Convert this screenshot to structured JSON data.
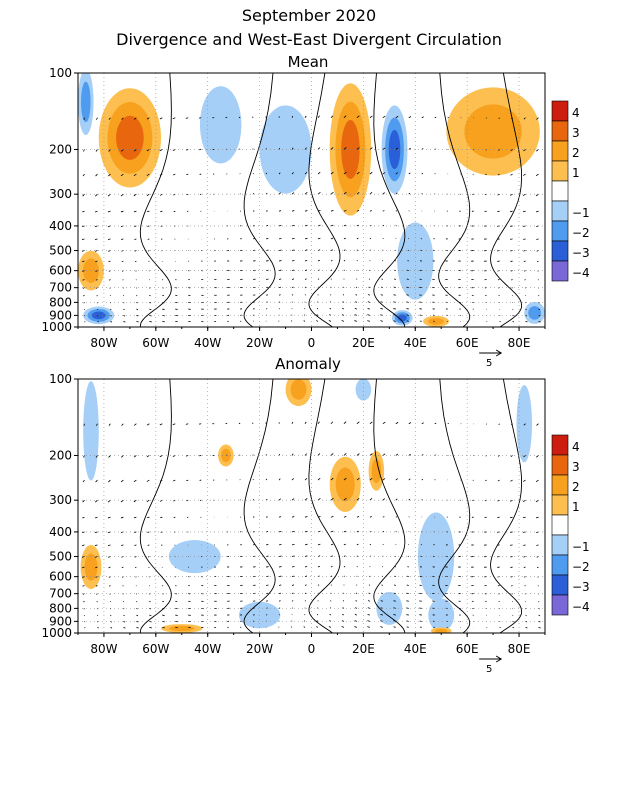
{
  "header": {
    "title": "September 2020",
    "subtitle": "Divergence and West-East Divergent Circulation"
  },
  "colors": {
    "-4": "#7b68d8",
    "-3": "#2a5fd8",
    "-2": "#4f9bef",
    "-1": "#a5cff7",
    "0": "#ffffff",
    "1": "#fdc050",
    "2": "#f8a11e",
    "3": "#e8660e",
    "4": "#cc1d0f"
  },
  "colorbar": {
    "labels": [
      "4",
      "3",
      "2",
      "1",
      "−1",
      "−2",
      "−3",
      "−4"
    ],
    "levels": [
      4,
      3,
      2,
      1,
      0,
      -1,
      -2,
      -3,
      -4
    ]
  },
  "vector_reference": "5",
  "chart_data": [
    {
      "type": "heatmap",
      "title": "Mean",
      "x_ticks": [
        "80W",
        "60W",
        "40W",
        "20W",
        "0",
        "20E",
        "40E",
        "60E",
        "80E"
      ],
      "x_tick_values": [
        -80,
        -60,
        -40,
        -20,
        0,
        20,
        40,
        60,
        80
      ],
      "y_ticks": [
        "100",
        "200",
        "300",
        "400",
        "500",
        "600",
        "700",
        "800",
        "900",
        "1000"
      ],
      "y_tick_values": [
        100,
        200,
        300,
        400,
        500,
        600,
        700,
        800,
        900,
        1000
      ],
      "xlim": [
        -90,
        90
      ],
      "ylim": [
        1000,
        100
      ],
      "y_scale": "log",
      "grid": true,
      "blobs": [
        {
          "x": -70,
          "p": 180,
          "rx": 12,
          "rp": 0.45,
          "level": 3
        },
        {
          "x": -87,
          "p": 130,
          "rx": 3,
          "rp": 0.3,
          "level": -2
        },
        {
          "x": -85,
          "p": 600,
          "rx": 5,
          "rp": 0.18,
          "level": 2
        },
        {
          "x": -82,
          "p": 900,
          "rx": 6,
          "rp": 0.08,
          "level": -3
        },
        {
          "x": -35,
          "p": 160,
          "rx": 8,
          "rp": 0.35,
          "level": -1
        },
        {
          "x": -10,
          "p": 200,
          "rx": 10,
          "rp": 0.4,
          "level": -1
        },
        {
          "x": 15,
          "p": 200,
          "rx": 8,
          "rp": 0.6,
          "level": 3
        },
        {
          "x": 32,
          "p": 200,
          "rx": 5,
          "rp": 0.4,
          "level": -3
        },
        {
          "x": 40,
          "p": 550,
          "rx": 7,
          "rp": 0.35,
          "level": -1
        },
        {
          "x": 35,
          "p": 920,
          "rx": 4,
          "rp": 0.07,
          "level": -3
        },
        {
          "x": 48,
          "p": 950,
          "rx": 5,
          "rp": 0.05,
          "level": 2
        },
        {
          "x": 70,
          "p": 170,
          "rx": 18,
          "rp": 0.4,
          "level": 2
        },
        {
          "x": 86,
          "p": 880,
          "rx": 4,
          "rp": 0.1,
          "level": -2
        }
      ]
    },
    {
      "type": "heatmap",
      "title": "Anomaly",
      "x_ticks": [
        "80W",
        "60W",
        "40W",
        "20W",
        "0",
        "20E",
        "40E",
        "60E",
        "80E"
      ],
      "x_tick_values": [
        -80,
        -60,
        -40,
        -20,
        0,
        20,
        40,
        60,
        80
      ],
      "y_ticks": [
        "100",
        "200",
        "300",
        "400",
        "500",
        "600",
        "700",
        "800",
        "900",
        "1000"
      ],
      "y_tick_values": [
        100,
        200,
        300,
        400,
        500,
        600,
        700,
        800,
        900,
        1000
      ],
      "xlim": [
        -90,
        90
      ],
      "ylim": [
        1000,
        100
      ],
      "y_scale": "log",
      "grid": true,
      "blobs": [
        {
          "x": -85,
          "p": 550,
          "rx": 4,
          "rp": 0.2,
          "level": 2
        },
        {
          "x": -85,
          "p": 160,
          "rx": 3,
          "rp": 0.45,
          "level": -1
        },
        {
          "x": -33,
          "p": 200,
          "rx": 3,
          "rp": 0.1,
          "level": 2
        },
        {
          "x": -5,
          "p": 110,
          "rx": 5,
          "rp": 0.15,
          "level": 2
        },
        {
          "x": 13,
          "p": 260,
          "rx": 6,
          "rp": 0.25,
          "level": 2
        },
        {
          "x": 25,
          "p": 230,
          "rx": 3,
          "rp": 0.18,
          "level": 2
        },
        {
          "x": 20,
          "p": 110,
          "rx": 3,
          "rp": 0.1,
          "level": -1
        },
        {
          "x": 48,
          "p": 500,
          "rx": 7,
          "rp": 0.4,
          "level": -1
        },
        {
          "x": 50,
          "p": 850,
          "rx": 5,
          "rp": 0.15,
          "level": -1
        },
        {
          "x": 82,
          "p": 150,
          "rx": 3,
          "rp": 0.35,
          "level": -1
        },
        {
          "x": -45,
          "p": 500,
          "rx": 10,
          "rp": 0.15,
          "level": -1
        },
        {
          "x": -20,
          "p": 850,
          "rx": 8,
          "rp": 0.12,
          "level": -1
        },
        {
          "x": -50,
          "p": 960,
          "rx": 8,
          "rp": 0.04,
          "level": 2
        },
        {
          "x": 50,
          "p": 980,
          "rx": 4,
          "rp": 0.03,
          "level": 2
        },
        {
          "x": 30,
          "p": 800,
          "rx": 5,
          "rp": 0.15,
          "level": -1
        }
      ]
    }
  ]
}
